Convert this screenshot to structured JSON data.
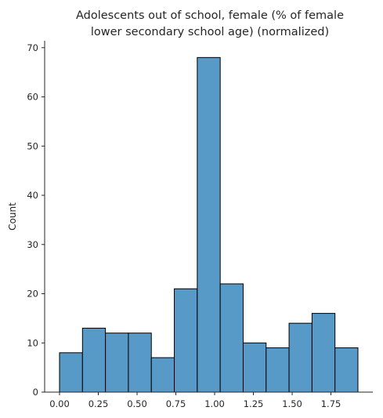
{
  "chart_data": {
    "type": "histogram",
    "title_lines": [
      "Adolescents out of school, female (% of female",
      "lower secondary school age) (normalized)"
    ],
    "xlabel": "",
    "ylabel": "Count",
    "bin_edges": [
      0.0,
      0.148,
      0.296,
      0.444,
      0.592,
      0.74,
      0.888,
      1.036,
      1.184,
      1.332,
      1.48,
      1.628,
      1.776,
      1.924
    ],
    "counts": [
      8,
      13,
      12,
      12,
      7,
      21,
      68,
      22,
      10,
      9,
      14,
      16,
      9
    ],
    "xlim": [
      -0.096,
      2.02
    ],
    "ylim": [
      0,
      71.4
    ],
    "x_ticks": [
      "0.00",
      "0.25",
      "0.50",
      "0.75",
      "1.00",
      "1.25",
      "1.50",
      "1.75"
    ],
    "x_tick_values": [
      0.0,
      0.25,
      0.5,
      0.75,
      1.0,
      1.25,
      1.5,
      1.75
    ],
    "y_ticks": [
      "0",
      "10",
      "20",
      "30",
      "40",
      "50",
      "60",
      "70"
    ],
    "y_tick_values": [
      0,
      10,
      20,
      30,
      40,
      50,
      60,
      70
    ],
    "bar_color": "#5799c7",
    "edge_color": "#000000",
    "grid": false,
    "spines": "left-bottom"
  }
}
